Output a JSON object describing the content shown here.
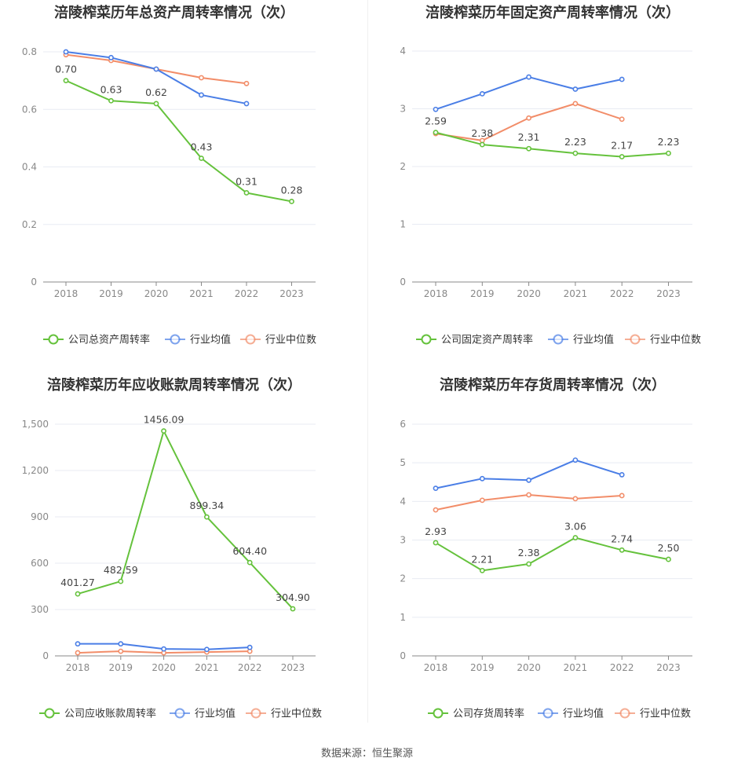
{
  "colors": {
    "company": "#65c23c",
    "avg": "#4a7ee6",
    "median": "#f28d69",
    "grid": "#e8ebf3",
    "axis": "#888888"
  },
  "legend": {
    "avg": "行业均值",
    "median": "行业中位数"
  },
  "footer": {
    "source": "数据来源：恒生聚源"
  },
  "chart_data": [
    {
      "type": "line",
      "title": "涪陵榨菜历年总资产周转率情况（次）",
      "categories": [
        "2018",
        "2019",
        "2020",
        "2021",
        "2022",
        "2023"
      ],
      "ylim": [
        0,
        0.8
      ],
      "yticks": [
        0,
        0.2,
        0.4,
        0.6,
        0.8
      ],
      "yticklabels": [
        "0",
        "0.2",
        "0.4",
        "0.6",
        "0.8"
      ],
      "grid": true,
      "legend_position": "bottom",
      "series": [
        {
          "name": "公司总资产周转率",
          "key": "company",
          "values": [
            0.7,
            0.63,
            0.62,
            0.43,
            0.31,
            0.28
          ],
          "labels": [
            "0.70",
            "0.63",
            "0.62",
            "0.43",
            "0.31",
            "0.28"
          ]
        },
        {
          "name": "行业均值",
          "key": "avg",
          "values": [
            0.8,
            0.78,
            0.74,
            0.65,
            0.62,
            null
          ]
        },
        {
          "name": "行业中位数",
          "key": "median",
          "values": [
            0.79,
            0.77,
            0.74,
            0.71,
            0.69,
            null
          ]
        }
      ]
    },
    {
      "type": "line",
      "title": "涪陵榨菜历年固定资产周转率情况（次）",
      "categories": [
        "2018",
        "2019",
        "2020",
        "2021",
        "2022",
        "2023"
      ],
      "ylim": [
        0,
        4
      ],
      "yticks": [
        0,
        1,
        2,
        3,
        4
      ],
      "yticklabels": [
        "0",
        "1",
        "2",
        "3",
        "4"
      ],
      "grid": true,
      "legend_position": "bottom",
      "series": [
        {
          "name": "公司固定资产周转率",
          "key": "company",
          "values": [
            2.59,
            2.38,
            2.31,
            2.23,
            2.17,
            2.23
          ],
          "labels": [
            "2.59",
            "2.38",
            "2.31",
            "2.23",
            "2.17",
            "2.23"
          ]
        },
        {
          "name": "行业均值",
          "key": "avg",
          "values": [
            2.99,
            3.26,
            3.55,
            3.34,
            3.51,
            null
          ]
        },
        {
          "name": "行业中位数",
          "key": "median",
          "values": [
            2.57,
            2.45,
            2.84,
            3.09,
            2.82,
            null
          ]
        }
      ]
    },
    {
      "type": "line",
      "title": "涪陵榨菜历年应收账款周转率情况（次）",
      "categories": [
        "2018",
        "2019",
        "2020",
        "2021",
        "2022",
        "2023"
      ],
      "ylim": [
        0,
        1500
      ],
      "yticks": [
        0,
        300,
        600,
        900,
        1200,
        1500
      ],
      "yticklabels": [
        "0",
        "300",
        "600",
        "900",
        "1,200",
        "1,500"
      ],
      "grid": true,
      "legend_position": "bottom",
      "series": [
        {
          "name": "公司应收账款周转率",
          "key": "company",
          "values": [
            401.27,
            482.59,
            1456.09,
            899.34,
            604.4,
            304.9
          ],
          "labels": [
            "401.27",
            "482.59",
            "1456.09",
            "899.34",
            "604.40",
            "304.90"
          ]
        },
        {
          "name": "行业均值",
          "key": "avg",
          "values": [
            78,
            78,
            45,
            42,
            55,
            null
          ]
        },
        {
          "name": "行业中位数",
          "key": "median",
          "values": [
            20,
            30,
            20,
            25,
            30,
            null
          ]
        }
      ]
    },
    {
      "type": "line",
      "title": "涪陵榨菜历年存货周转率情况（次）",
      "categories": [
        "2018",
        "2019",
        "2020",
        "2021",
        "2022",
        "2023"
      ],
      "ylim": [
        0,
        6
      ],
      "yticks": [
        0,
        1,
        2,
        3,
        4,
        5,
        6
      ],
      "yticklabels": [
        "0",
        "1",
        "2",
        "3",
        "4",
        "5",
        "6"
      ],
      "grid": true,
      "legend_position": "bottom",
      "series": [
        {
          "name": "公司存货周转率",
          "key": "company",
          "values": [
            2.93,
            2.21,
            2.38,
            3.06,
            2.74,
            2.5
          ],
          "labels": [
            "2.93",
            "2.21",
            "2.38",
            "3.06",
            "2.74",
            "2.50"
          ]
        },
        {
          "name": "行业均值",
          "key": "avg",
          "values": [
            4.34,
            4.59,
            4.55,
            5.07,
            4.69,
            null
          ]
        },
        {
          "name": "行业中位数",
          "key": "median",
          "values": [
            3.78,
            4.03,
            4.17,
            4.07,
            4.15,
            null
          ]
        }
      ]
    }
  ]
}
